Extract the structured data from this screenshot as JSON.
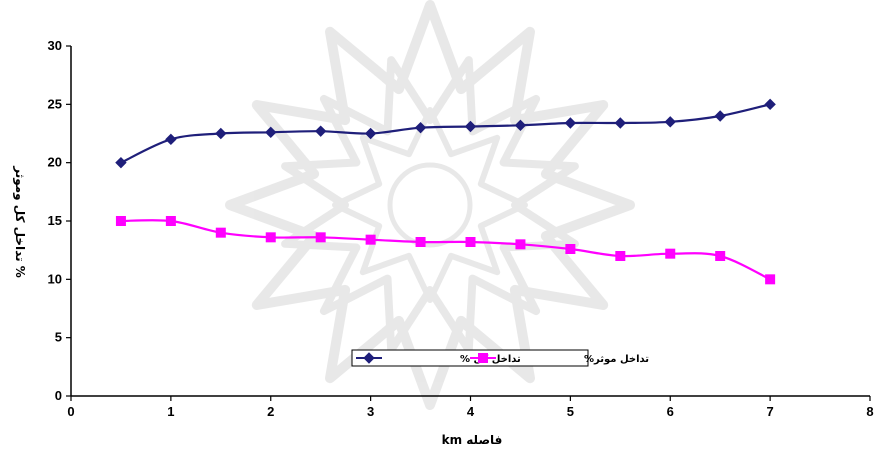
{
  "chart_data": {
    "type": "line",
    "xlabel": "km فاصله",
    "ylabel": "% تداخل کل وموثر",
    "xlim": [
      0,
      8
    ],
    "ylim": [
      0,
      30
    ],
    "xticks": [
      0,
      1,
      2,
      3,
      4,
      5,
      6,
      7,
      8
    ],
    "yticks": [
      0,
      5,
      10,
      15,
      20,
      25,
      30
    ],
    "grid": false,
    "legend_position": "bottom-center",
    "series": [
      {
        "name": "تداخل کل %",
        "color": "#1f1f7a",
        "marker": "diamond",
        "x": [
          0.5,
          1,
          1.5,
          2,
          2.5,
          3,
          3.5,
          4,
          4.5,
          5,
          5.5,
          6,
          6.5,
          7
        ],
        "y": [
          20,
          22,
          22.5,
          22.6,
          22.7,
          22.5,
          23,
          23.1,
          23.2,
          23.4,
          23.4,
          23.5,
          24,
          25
        ]
      },
      {
        "name": "تداخل موثر%",
        "color": "#ff00ff",
        "marker": "square",
        "x": [
          0.5,
          1,
          1.5,
          2,
          2.5,
          3,
          3.5,
          4,
          4.5,
          5,
          5.5,
          6,
          6.5,
          7
        ],
        "y": [
          15,
          15,
          14,
          13.6,
          13.6,
          13.4,
          13.2,
          13.2,
          13,
          12.6,
          12,
          12.2,
          12,
          10
        ]
      }
    ]
  }
}
